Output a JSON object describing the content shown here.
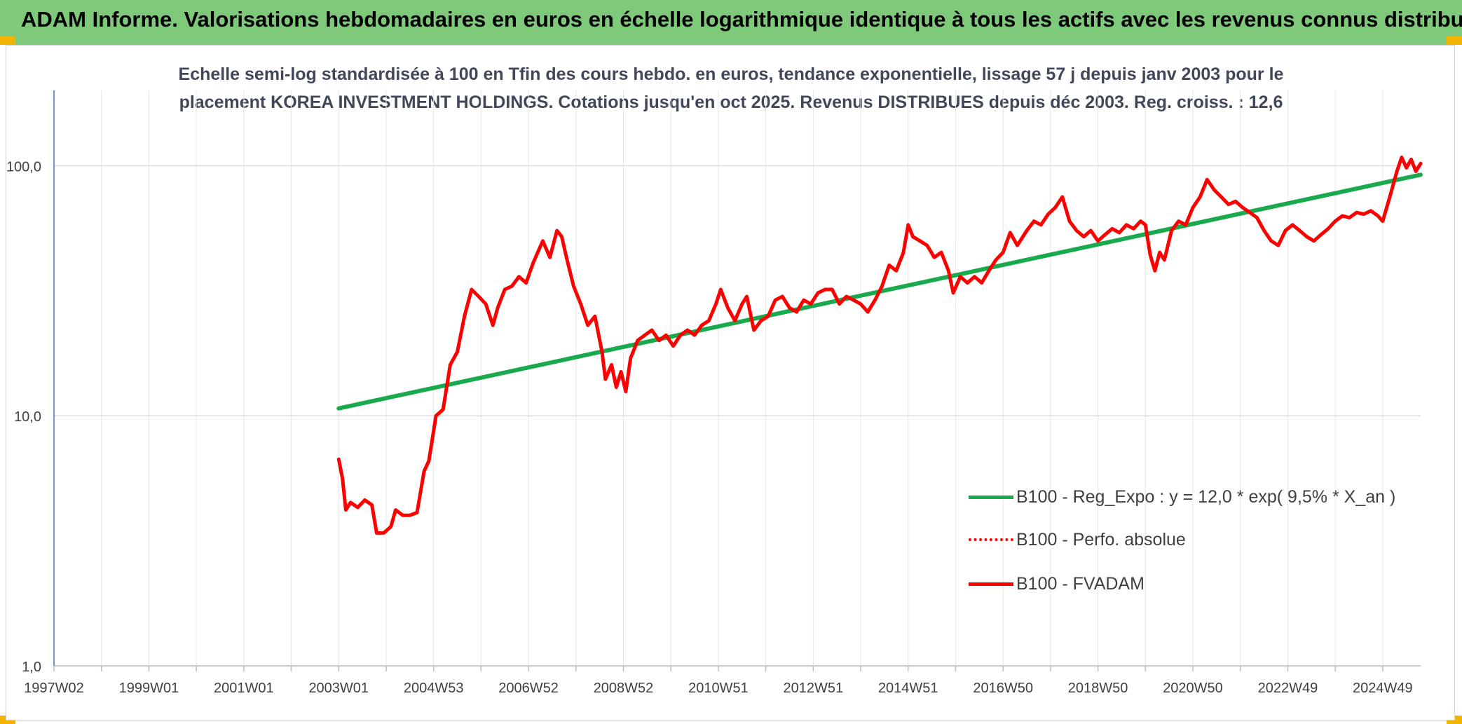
{
  "header": {
    "title": "ADAM Informe. Valorisations hebdomadaires en euros en échelle logarithmique identique à tous les actifs avec les revenus connus distribués"
  },
  "chart_data": {
    "type": "line",
    "title": "Echelle semi-log standardisée à 100 en Tfin des cours hebdo. en euros, tendance exponentielle, lissage 57 j depuis janv 2003 pour le placement KOREA INVESTMENT HOLDINGS. Cotations jusqu'en oct 2025. Revenus DISTRIBUES depuis déc 2003. Reg. croiss. : 12,6",
    "title_lines": [
      "Echelle semi-log standardisée à 100 en Tfin des cours hebdo. en euros, tendance exponentielle, lissage 57 j depuis janv 2003 pour le",
      "placement KOREA INVESTMENT HOLDINGS. Cotations jusqu'en oct 2025. Revenus DISTRIBUES depuis déc 2003. Reg. croiss. : 12,6"
    ],
    "xlabel": "",
    "ylabel": "",
    "y_scale": "log",
    "ylim": [
      1,
      200
    ],
    "xlim": [
      1997.0,
      2025.8
    ],
    "grid": true,
    "legend_position": "right",
    "x_ticks": [
      {
        "label": "1997W02",
        "x": 1997.0
      },
      {
        "label": "1999W01",
        "x": 1999.0
      },
      {
        "label": "2001W01",
        "x": 2001.0
      },
      {
        "label": "2003W01",
        "x": 2003.0
      },
      {
        "label": "2004W53",
        "x": 2005.0
      },
      {
        "label": "2006W52",
        "x": 2007.0
      },
      {
        "label": "2008W52",
        "x": 2009.0
      },
      {
        "label": "2010W51",
        "x": 2011.0
      },
      {
        "label": "2012W51",
        "x": 2013.0
      },
      {
        "label": "2014W51",
        "x": 2015.0
      },
      {
        "label": "2016W50",
        "x": 2017.0
      },
      {
        "label": "2018W50",
        "x": 2019.0
      },
      {
        "label": "2020W50",
        "x": 2021.0
      },
      {
        "label": "2022W49",
        "x": 2023.0
      },
      {
        "label": "2024W49",
        "x": 2025.0
      }
    ],
    "y_ticks": [
      {
        "label": "1,0",
        "y": 1
      },
      {
        "label": "10,0",
        "y": 10
      },
      {
        "label": "100,0",
        "y": 100
      }
    ],
    "series": [
      {
        "name": "B100 - Reg_Expo : y = 12,0 * exp( 9,5% * X_an )",
        "color": "#1aaa4e",
        "style": "solid",
        "points": [
          [
            2003.0,
            10.7
          ],
          [
            2025.8,
            92.0
          ]
        ]
      },
      {
        "name": "B100 - Perfo. absolue",
        "color": "#ff0000",
        "style": "dotted",
        "points": []
      },
      {
        "name": "B100 - FVADAM",
        "color": "#ff0000",
        "style": "solid",
        "points": [
          [
            2003.0,
            6.7
          ],
          [
            2003.08,
            5.6
          ],
          [
            2003.15,
            4.2
          ],
          [
            2003.25,
            4.5
          ],
          [
            2003.4,
            4.3
          ],
          [
            2003.55,
            4.6
          ],
          [
            2003.7,
            4.4
          ],
          [
            2003.8,
            3.4
          ],
          [
            2003.95,
            3.4
          ],
          [
            2004.1,
            3.6
          ],
          [
            2004.2,
            4.2
          ],
          [
            2004.35,
            4.0
          ],
          [
            2004.5,
            4.0
          ],
          [
            2004.65,
            4.1
          ],
          [
            2004.8,
            6.0
          ],
          [
            2004.9,
            6.6
          ],
          [
            2005.05,
            10.0
          ],
          [
            2005.2,
            10.6
          ],
          [
            2005.35,
            16.0
          ],
          [
            2005.5,
            18.0
          ],
          [
            2005.65,
            25.0
          ],
          [
            2005.8,
            32.0
          ],
          [
            2005.95,
            30.0
          ],
          [
            2006.1,
            28.0
          ],
          [
            2006.25,
            23.0
          ],
          [
            2006.35,
            27.0
          ],
          [
            2006.5,
            32.0
          ],
          [
            2006.65,
            33.0
          ],
          [
            2006.8,
            36.0
          ],
          [
            2006.95,
            34.0
          ],
          [
            2007.1,
            41.0
          ],
          [
            2007.3,
            50.0
          ],
          [
            2007.45,
            43.0
          ],
          [
            2007.6,
            55.0
          ],
          [
            2007.7,
            52.0
          ],
          [
            2007.8,
            43.0
          ],
          [
            2007.95,
            33.0
          ],
          [
            2008.1,
            28.0
          ],
          [
            2008.25,
            23.0
          ],
          [
            2008.4,
            25.0
          ],
          [
            2008.55,
            18.0
          ],
          [
            2008.62,
            14.0
          ],
          [
            2008.75,
            16.0
          ],
          [
            2008.85,
            13.0
          ],
          [
            2008.95,
            15.0
          ],
          [
            2009.05,
            12.5
          ],
          [
            2009.15,
            17.0
          ],
          [
            2009.3,
            20.0
          ],
          [
            2009.45,
            21.0
          ],
          [
            2009.6,
            22.0
          ],
          [
            2009.75,
            20.0
          ],
          [
            2009.9,
            21.0
          ],
          [
            2010.05,
            19.0
          ],
          [
            2010.2,
            21.0
          ],
          [
            2010.35,
            22.0
          ],
          [
            2010.5,
            21.0
          ],
          [
            2010.65,
            23.0
          ],
          [
            2010.8,
            24.0
          ],
          [
            2010.95,
            28.0
          ],
          [
            2011.05,
            32.0
          ],
          [
            2011.2,
            27.0
          ],
          [
            2011.35,
            24.0
          ],
          [
            2011.5,
            28.0
          ],
          [
            2011.6,
            30.0
          ],
          [
            2011.75,
            22.0
          ],
          [
            2011.9,
            24.0
          ],
          [
            2012.05,
            25.0
          ],
          [
            2012.2,
            29.0
          ],
          [
            2012.35,
            30.0
          ],
          [
            2012.5,
            27.0
          ],
          [
            2012.65,
            26.0
          ],
          [
            2012.8,
            29.0
          ],
          [
            2012.95,
            28.0
          ],
          [
            2013.1,
            31.0
          ],
          [
            2013.25,
            32.0
          ],
          [
            2013.4,
            32.0
          ],
          [
            2013.55,
            28.0
          ],
          [
            2013.7,
            30.0
          ],
          [
            2013.85,
            29.0
          ],
          [
            2014.0,
            28.0
          ],
          [
            2014.15,
            26.0
          ],
          [
            2014.3,
            29.0
          ],
          [
            2014.45,
            33.0
          ],
          [
            2014.6,
            40.0
          ],
          [
            2014.75,
            38.0
          ],
          [
            2014.9,
            45.0
          ],
          [
            2015.0,
            58.0
          ],
          [
            2015.1,
            52.0
          ],
          [
            2015.25,
            50.0
          ],
          [
            2015.4,
            48.0
          ],
          [
            2015.55,
            43.0
          ],
          [
            2015.7,
            45.0
          ],
          [
            2015.85,
            38.0
          ],
          [
            2015.95,
            31.0
          ],
          [
            2016.1,
            36.0
          ],
          [
            2016.25,
            34.0
          ],
          [
            2016.4,
            36.0
          ],
          [
            2016.55,
            34.0
          ],
          [
            2016.7,
            38.0
          ],
          [
            2016.85,
            42.0
          ],
          [
            2017.0,
            45.0
          ],
          [
            2017.15,
            54.0
          ],
          [
            2017.3,
            48.0
          ],
          [
            2017.5,
            55.0
          ],
          [
            2017.65,
            60.0
          ],
          [
            2017.8,
            58.0
          ],
          [
            2017.95,
            64.0
          ],
          [
            2018.1,
            68.0
          ],
          [
            2018.25,
            75.0
          ],
          [
            2018.4,
            60.0
          ],
          [
            2018.55,
            55.0
          ],
          [
            2018.7,
            52.0
          ],
          [
            2018.85,
            55.0
          ],
          [
            2019.0,
            50.0
          ],
          [
            2019.15,
            53.0
          ],
          [
            2019.3,
            56.0
          ],
          [
            2019.45,
            54.0
          ],
          [
            2019.6,
            58.0
          ],
          [
            2019.75,
            56.0
          ],
          [
            2019.9,
            60.0
          ],
          [
            2020.0,
            58.0
          ],
          [
            2020.1,
            44.0
          ],
          [
            2020.2,
            38.0
          ],
          [
            2020.3,
            45.0
          ],
          [
            2020.4,
            42.0
          ],
          [
            2020.55,
            55.0
          ],
          [
            2020.7,
            60.0
          ],
          [
            2020.85,
            58.0
          ],
          [
            2021.0,
            68.0
          ],
          [
            2021.15,
            75.0
          ],
          [
            2021.3,
            88.0
          ],
          [
            2021.45,
            80.0
          ],
          [
            2021.6,
            75.0
          ],
          [
            2021.75,
            70.0
          ],
          [
            2021.9,
            72.0
          ],
          [
            2022.05,
            68.0
          ],
          [
            2022.2,
            65.0
          ],
          [
            2022.35,
            62.0
          ],
          [
            2022.5,
            55.0
          ],
          [
            2022.65,
            50.0
          ],
          [
            2022.8,
            48.0
          ],
          [
            2022.95,
            55.0
          ],
          [
            2023.1,
            58.0
          ],
          [
            2023.25,
            55.0
          ],
          [
            2023.4,
            52.0
          ],
          [
            2023.55,
            50.0
          ],
          [
            2023.7,
            53.0
          ],
          [
            2023.85,
            56.0
          ],
          [
            2024.0,
            60.0
          ],
          [
            2024.15,
            63.0
          ],
          [
            2024.3,
            62.0
          ],
          [
            2024.45,
            65.0
          ],
          [
            2024.6,
            64.0
          ],
          [
            2024.75,
            66.0
          ],
          [
            2024.9,
            63.0
          ],
          [
            2025.0,
            60.0
          ],
          [
            2025.15,
            75.0
          ],
          [
            2025.3,
            95.0
          ],
          [
            2025.4,
            108.0
          ],
          [
            2025.5,
            98.0
          ],
          [
            2025.6,
            106.0
          ],
          [
            2025.7,
            95.0
          ],
          [
            2025.8,
            102.0
          ]
        ]
      }
    ]
  }
}
